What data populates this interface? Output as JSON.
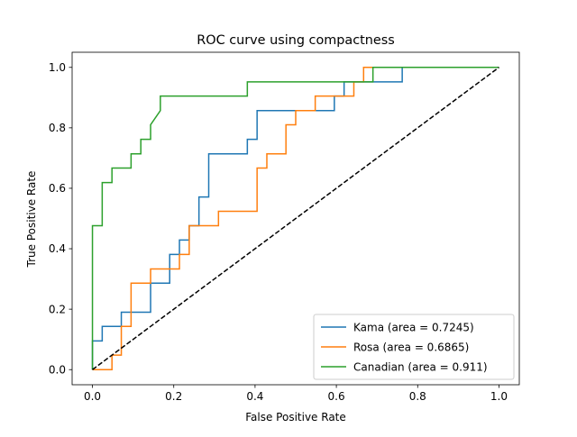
{
  "chart_data": {
    "type": "line",
    "title": "ROC curve using compactness",
    "xlabel": "False Positive Rate",
    "ylabel": "True Positive Rate",
    "xlim": [
      -0.05,
      1.05
    ],
    "ylim": [
      -0.05,
      1.05
    ],
    "xticks": [
      "0.0",
      "0.2",
      "0.4",
      "0.6",
      "0.8",
      "1.0"
    ],
    "yticks": [
      "0.0",
      "0.2",
      "0.4",
      "0.6",
      "0.8",
      "1.0"
    ],
    "xtick_values": [
      0,
      0.2,
      0.4,
      0.6,
      0.8,
      1.0
    ],
    "ytick_values": [
      0,
      0.2,
      0.4,
      0.6,
      0.8,
      1.0
    ],
    "grid": false,
    "legend_position": "lower right",
    "series": [
      {
        "name": "Kama (area = 0.7245)",
        "color": "#1f77b4",
        "x": [
          0,
          0,
          0.024,
          0.024,
          0.071,
          0.071,
          0.143,
          0.143,
          0.19,
          0.19,
          0.214,
          0.214,
          0.238,
          0.238,
          0.262,
          0.262,
          0.286,
          0.286,
          0.381,
          0.381,
          0.405,
          0.405,
          0.595,
          0.595,
          0.619,
          0.619,
          0.762,
          0.762,
          1.0
        ],
        "y": [
          0,
          0.095,
          0.095,
          0.143,
          0.143,
          0.19,
          0.19,
          0.286,
          0.286,
          0.381,
          0.381,
          0.429,
          0.429,
          0.476,
          0.476,
          0.571,
          0.571,
          0.714,
          0.714,
          0.762,
          0.762,
          0.857,
          0.857,
          0.905,
          0.905,
          0.952,
          0.952,
          1.0,
          1.0
        ]
      },
      {
        "name": "Rosa (area = 0.6865)",
        "color": "#ff7f0e",
        "x": [
          0,
          0.048,
          0.048,
          0.071,
          0.071,
          0.095,
          0.095,
          0.143,
          0.143,
          0.214,
          0.214,
          0.238,
          0.238,
          0.31,
          0.31,
          0.405,
          0.405,
          0.429,
          0.429,
          0.476,
          0.476,
          0.5,
          0.5,
          0.548,
          0.548,
          0.643,
          0.643,
          0.667,
          0.667,
          0.69,
          0.69,
          1.0
        ],
        "y": [
          0,
          0,
          0.048,
          0.048,
          0.143,
          0.143,
          0.286,
          0.286,
          0.333,
          0.333,
          0.381,
          0.381,
          0.476,
          0.476,
          0.524,
          0.524,
          0.667,
          0.667,
          0.714,
          0.714,
          0.81,
          0.81,
          0.857,
          0.857,
          0.905,
          0.905,
          0.952,
          0.952,
          1.0,
          1.0,
          1.0,
          1.0
        ]
      },
      {
        "name": "Canadian (area = 0.911)",
        "color": "#2ca02c",
        "x": [
          0,
          0,
          0.024,
          0.024,
          0.048,
          0.048,
          0.095,
          0.095,
          0.119,
          0.119,
          0.143,
          0.143,
          0.167,
          0.167,
          0.381,
          0.381,
          0.667,
          0.667,
          0.69,
          0.69,
          1.0
        ],
        "y": [
          0,
          0.476,
          0.476,
          0.619,
          0.619,
          0.667,
          0.667,
          0.714,
          0.714,
          0.762,
          0.762,
          0.81,
          0.857,
          0.905,
          0.905,
          0.952,
          0.952,
          0.952,
          0.952,
          1.0,
          1.0
        ]
      }
    ],
    "reference_line": {
      "x": [
        0,
        1
      ],
      "y": [
        0,
        1
      ],
      "color": "#000000",
      "style": "dashed"
    }
  }
}
